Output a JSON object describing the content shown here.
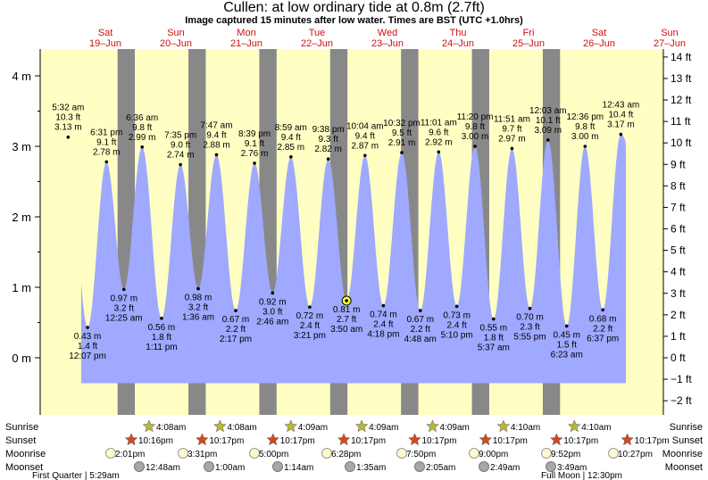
{
  "title": "Cullen: at low  ordinary tide at 0.8m (2.7ft)",
  "subtitle": "Image captured 15 minutes after low water. Times are BST (UTC +1.0hrs)",
  "colors": {
    "day_bg": "#ffffc4",
    "night_bar": "#888888",
    "water": "#9ea9ff",
    "day_label": "#d01010",
    "sun_icon": "#b8b832",
    "sunset_icon": "#d04a1e",
    "moonrise_icon": "#fffacc",
    "moonset_icon": "#aaa9a0"
  },
  "chart_data": {
    "type": "area",
    "title": "Cullen: at low  ordinary tide at 0.8m (2.7ft)",
    "ylabel_left": "m",
    "ylabel_right": "ft",
    "ylim_m": [
      -0.4,
      4.4
    ],
    "y_ticks_m": [
      "0 m",
      "1 m",
      "2 m",
      "3 m",
      "4 m"
    ],
    "y_ticks_ft": [
      "−2 ft",
      "−1 ft",
      "0 ft",
      "1 ft",
      "2 ft",
      "3 ft",
      "4 ft",
      "5 ft",
      "6 ft",
      "7 ft",
      "8 ft",
      "9 ft",
      "10 ft",
      "11 ft",
      "12 ft",
      "13 ft",
      "14 ft"
    ],
    "days": [
      {
        "dow": "Sat",
        "date": "19–Jun"
      },
      {
        "dow": "Sun",
        "date": "20–Jun"
      },
      {
        "dow": "Mon",
        "date": "21–Jun"
      },
      {
        "dow": "Tue",
        "date": "22–Jun"
      },
      {
        "dow": "Wed",
        "date": "23–Jun"
      },
      {
        "dow": "Thu",
        "date": "24–Jun"
      },
      {
        "dow": "Fri",
        "date": "25–Jun"
      },
      {
        "dow": "Sat",
        "date": "26–Jun"
      },
      {
        "dow": "Sun",
        "date": "27–Jun"
      }
    ],
    "tides": [
      {
        "time": "5:32 am",
        "ft": "10.3 ft",
        "m": 3.13,
        "type": "high"
      },
      {
        "time": "12:07 pm",
        "ft": "1.4 ft",
        "m": 0.43,
        "type": "low"
      },
      {
        "time": "6:31 pm",
        "ft": "9.1 ft",
        "m": 2.78,
        "type": "high"
      },
      {
        "time": "12:25 am",
        "ft": "3.2 ft",
        "m": 0.97,
        "type": "low"
      },
      {
        "time": "6:36 am",
        "ft": "9.8 ft",
        "m": 2.99,
        "type": "high"
      },
      {
        "time": "1:11 pm",
        "ft": "1.8 ft",
        "m": 0.56,
        "type": "low"
      },
      {
        "time": "7:35 pm",
        "ft": "9.0 ft",
        "m": 2.74,
        "type": "high"
      },
      {
        "time": "1:36 am",
        "ft": "3.2 ft",
        "m": 0.98,
        "type": "low"
      },
      {
        "time": "7:47 am",
        "ft": "9.4 ft",
        "m": 2.88,
        "type": "high"
      },
      {
        "time": "2:17 pm",
        "ft": "2.2 ft",
        "m": 0.67,
        "type": "low"
      },
      {
        "time": "8:39 pm",
        "ft": "9.1 ft",
        "m": 2.76,
        "type": "high"
      },
      {
        "time": "2:46 am",
        "ft": "3.0 ft",
        "m": 0.92,
        "type": "low"
      },
      {
        "time": "8:59 am",
        "ft": "9.4 ft",
        "m": 2.85,
        "type": "high"
      },
      {
        "time": "3:21 pm",
        "ft": "2.4 ft",
        "m": 0.72,
        "type": "low"
      },
      {
        "time": "9:38 pm",
        "ft": "9.3 ft",
        "m": 2.82,
        "type": "high"
      },
      {
        "time": "3:50 am",
        "ft": "2.7 ft",
        "m": 0.81,
        "type": "low",
        "current": true
      },
      {
        "time": "10:04 am",
        "ft": "9.4 ft",
        "m": 2.87,
        "type": "high"
      },
      {
        "time": "4:18 pm",
        "ft": "2.4 ft",
        "m": 0.74,
        "type": "low"
      },
      {
        "time": "10:32 pm",
        "ft": "9.5 ft",
        "m": 2.91,
        "type": "high"
      },
      {
        "time": "4:48 am",
        "ft": "2.2 ft",
        "m": 0.67,
        "type": "low"
      },
      {
        "time": "11:01 am",
        "ft": "9.6 ft",
        "m": 2.92,
        "type": "high"
      },
      {
        "time": "5:10 pm",
        "ft": "2.4 ft",
        "m": 0.73,
        "type": "low"
      },
      {
        "time": "11:20 pm",
        "ft": "9.8 ft",
        "m": 3.0,
        "type": "high"
      },
      {
        "time": "5:37 am",
        "ft": "1.8 ft",
        "m": 0.55,
        "type": "low"
      },
      {
        "time": "11:51 am",
        "ft": "9.7 ft",
        "m": 2.97,
        "type": "high"
      },
      {
        "time": "5:55 pm",
        "ft": "2.3 ft",
        "m": 0.7,
        "type": "low"
      },
      {
        "time": "12:03 am",
        "ft": "10.1 ft",
        "m": 3.09,
        "type": "high"
      },
      {
        "time": "6:23 am",
        "ft": "1.5 ft",
        "m": 0.45,
        "type": "low"
      },
      {
        "time": "12:36 pm",
        "ft": "9.8 ft",
        "m": 3.0,
        "type": "high"
      },
      {
        "time": "6:37 pm",
        "ft": "2.2 ft",
        "m": 0.68,
        "type": "low"
      },
      {
        "time": "12:43 am",
        "ft": "10.4 ft",
        "m": 3.17,
        "type": "high"
      }
    ],
    "current_level": {
      "m": 0.8,
      "ft": "2.7ft"
    }
  },
  "rows": {
    "sunrise": "Sunrise",
    "sunset": "Sunset",
    "moonrise": "Moonrise",
    "moonset": "Moonset"
  },
  "sunrise": [
    "4:08am",
    "4:08am",
    "4:09am",
    "4:09am",
    "4:09am",
    "4:10am",
    "4:10am"
  ],
  "sunset": [
    "10:16pm",
    "10:17pm",
    "10:17pm",
    "10:17pm",
    "10:17pm",
    "10:17pm",
    "10:17pm",
    "10:17pm"
  ],
  "moonrise": [
    "2:01pm",
    "3:31pm",
    "5:00pm",
    "6:28pm",
    "7:50pm",
    "9:00pm",
    "9:52pm",
    "10:27pm"
  ],
  "moonset": [
    "12:48am",
    "1:00am",
    "1:14am",
    "1:35am",
    "2:05am",
    "2:49am",
    "3:49am"
  ],
  "moon_phases": [
    {
      "label": "First Quarter | 5:29am"
    },
    {
      "label": "Full Moon | 12:30pm"
    }
  ]
}
